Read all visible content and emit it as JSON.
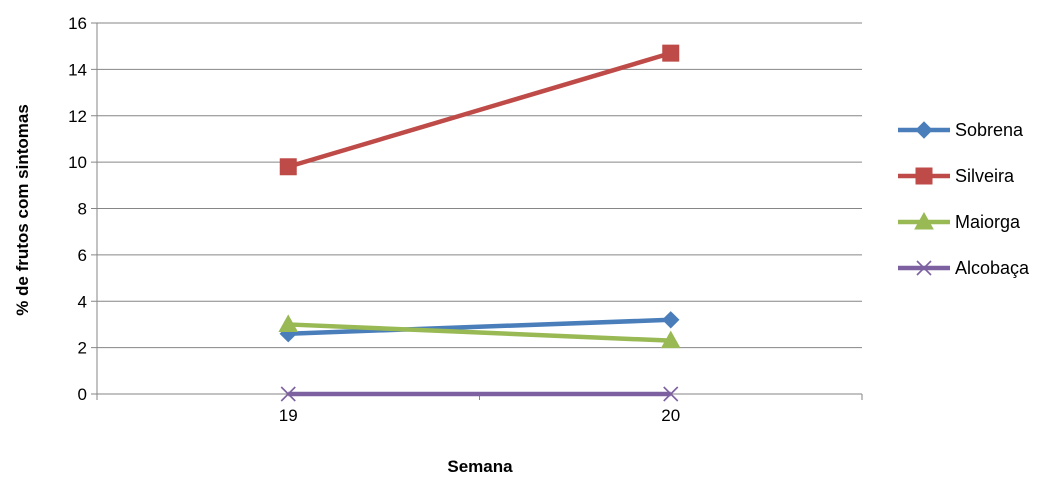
{
  "chart_data": {
    "type": "line",
    "x": [
      "19",
      "20"
    ],
    "xlabel": "Semana",
    "ylabel": "% de frutos com sintomas",
    "ylim": [
      0,
      16
    ],
    "yticks": [
      "0",
      "2",
      "4",
      "6",
      "8",
      "10",
      "12",
      "14",
      "16"
    ],
    "grid": true,
    "legend": "right",
    "series": [
      {
        "name": "Sobrena",
        "values": [
          2.6,
          3.2
        ],
        "color": "#4a7ebb",
        "marker": "diamond"
      },
      {
        "name": "Silveira",
        "values": [
          9.8,
          14.7
        ],
        "color": "#be4b48",
        "marker": "square"
      },
      {
        "name": "Maiorga",
        "values": [
          3.0,
          2.3
        ],
        "color": "#98b954",
        "marker": "triangle"
      },
      {
        "name": "Alcobaça",
        "values": [
          0,
          0
        ],
        "color": "#7d60a0",
        "marker": "x"
      }
    ]
  }
}
